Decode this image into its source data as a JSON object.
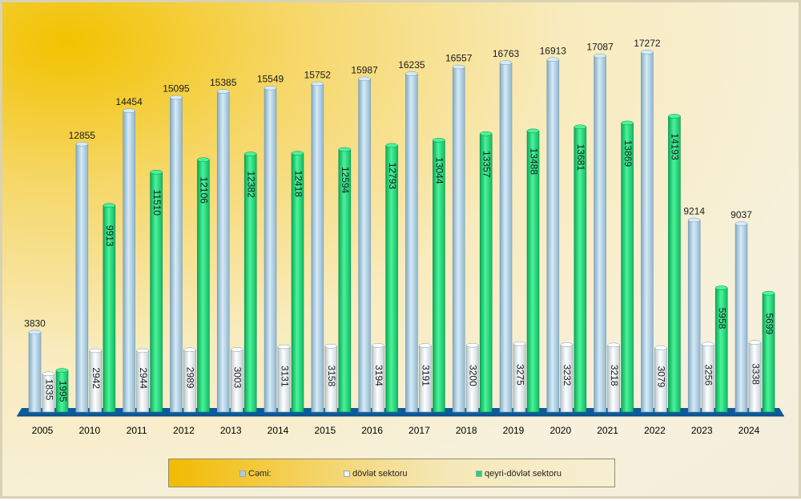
{
  "chart_data": {
    "type": "bar",
    "categories": [
      "2005",
      "2010",
      "2011",
      "2012",
      "2013",
      "2014",
      "2015",
      "2016",
      "2017",
      "2018",
      "2019",
      "2020",
      "2021",
      "2022",
      "2023",
      "2024"
    ],
    "series": [
      {
        "name": "Cəmi:",
        "color": "#a9cde4",
        "values": [
          3830,
          12855,
          14454,
          15095,
          15385,
          15549,
          15752,
          15987,
          16235,
          16557,
          16763,
          16913,
          17087,
          17272,
          9214,
          9037
        ]
      },
      {
        "name": "dövlət sektoru",
        "color": "#eef3f6",
        "values": [
          1835,
          2942,
          2944,
          2989,
          3003,
          3131,
          3158,
          3194,
          3191,
          3200,
          3275,
          3232,
          3218,
          3079,
          3256,
          3338
        ]
      },
      {
        "name": "qeyri-dövlət sektoru",
        "color": "#1ed67a",
        "values": [
          1995,
          9913,
          11510,
          12106,
          12382,
          12418,
          12594,
          12793,
          13044,
          13357,
          13488,
          13681,
          13869,
          14193,
          5958,
          5699
        ]
      }
    ],
    "ylim": [
      0,
      17500
    ],
    "grid": false,
    "legend_position": "bottom"
  },
  "legend": {
    "items": [
      {
        "label": "Cəmi:",
        "color": "#a9cde4"
      },
      {
        "label": "dövlət sektoru",
        "color": "#eef3f6"
      },
      {
        "label": "qeyri-dövlət sektoru",
        "color": "#1ed67a"
      }
    ]
  }
}
